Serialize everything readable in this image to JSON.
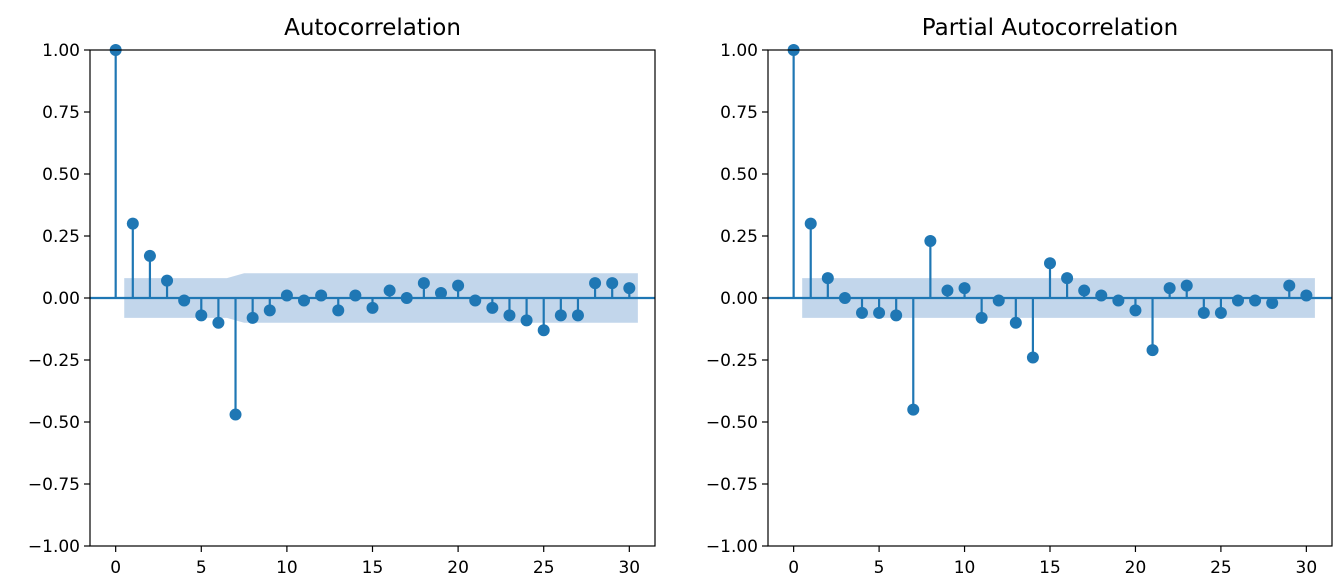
{
  "colors": {
    "series": "#1f77b4",
    "band": "#c2d6eb",
    "axis": "#000000",
    "background": "#ffffff"
  },
  "chart_data": [
    {
      "type": "stem",
      "title": "Autocorrelation",
      "xlabel": "",
      "ylabel": "",
      "xlim": [
        -1.5,
        31.5
      ],
      "ylim": [
        -1.0,
        1.0
      ],
      "xticks": [
        0,
        5,
        10,
        15,
        20,
        25,
        30
      ],
      "yticks": [
        1.0,
        0.75,
        0.5,
        0.25,
        0.0,
        -0.25,
        -0.5,
        -0.75,
        -1.0
      ],
      "ytick_labels": [
        "1.00",
        "0.75",
        "0.50",
        "0.25",
        "0.00",
        "−0.25",
        "−0.50",
        "−0.75",
        "−1.00"
      ],
      "grid": false,
      "lags": [
        0,
        1,
        2,
        3,
        4,
        5,
        6,
        7,
        8,
        9,
        10,
        11,
        12,
        13,
        14,
        15,
        16,
        17,
        18,
        19,
        20,
        21,
        22,
        23,
        24,
        25,
        26,
        27,
        28,
        29,
        30
      ],
      "values": [
        1.0,
        0.3,
        0.17,
        0.07,
        -0.01,
        -0.07,
        -0.1,
        -0.47,
        -0.08,
        -0.05,
        0.01,
        -0.01,
        0.01,
        -0.05,
        0.01,
        -0.04,
        0.03,
        0.0,
        0.06,
        0.02,
        0.05,
        -0.01,
        -0.04,
        -0.07,
        -0.09,
        -0.13,
        -0.07,
        -0.07,
        0.06,
        0.06,
        0.04
      ],
      "confidence_band": {
        "x": [
          0.5,
          6.5,
          7.5,
          30.5
        ],
        "upper": [
          0.08,
          0.08,
          0.1,
          0.1
        ],
        "lower": [
          -0.08,
          -0.08,
          -0.1,
          -0.1
        ]
      }
    },
    {
      "type": "stem",
      "title": "Partial Autocorrelation",
      "xlabel": "",
      "ylabel": "",
      "xlim": [
        -1.5,
        31.5
      ],
      "ylim": [
        -1.0,
        1.0
      ],
      "xticks": [
        0,
        5,
        10,
        15,
        20,
        25,
        30
      ],
      "yticks": [
        1.0,
        0.75,
        0.5,
        0.25,
        0.0,
        -0.25,
        -0.5,
        -0.75,
        -1.0
      ],
      "ytick_labels": [
        "1.00",
        "0.75",
        "0.50",
        "0.25",
        "0.00",
        "−0.25",
        "−0.50",
        "−0.75",
        "−1.00"
      ],
      "grid": false,
      "lags": [
        0,
        1,
        2,
        3,
        4,
        5,
        6,
        7,
        8,
        9,
        10,
        11,
        12,
        13,
        14,
        15,
        16,
        17,
        18,
        19,
        20,
        21,
        22,
        23,
        24,
        25,
        26,
        27,
        28,
        29,
        30
      ],
      "values": [
        1.0,
        0.3,
        0.08,
        0.0,
        -0.06,
        -0.06,
        -0.07,
        -0.45,
        0.23,
        0.03,
        0.04,
        -0.08,
        -0.01,
        -0.1,
        -0.24,
        0.14,
        0.08,
        0.03,
        0.01,
        -0.01,
        -0.05,
        -0.21,
        0.04,
        0.05,
        -0.06,
        -0.06,
        -0.01,
        -0.01,
        -0.02,
        0.05,
        0.01
      ],
      "confidence_band": {
        "x": [
          0.5,
          30.5
        ],
        "upper": [
          0.08,
          0.08
        ],
        "lower": [
          -0.08,
          -0.08
        ]
      }
    }
  ]
}
